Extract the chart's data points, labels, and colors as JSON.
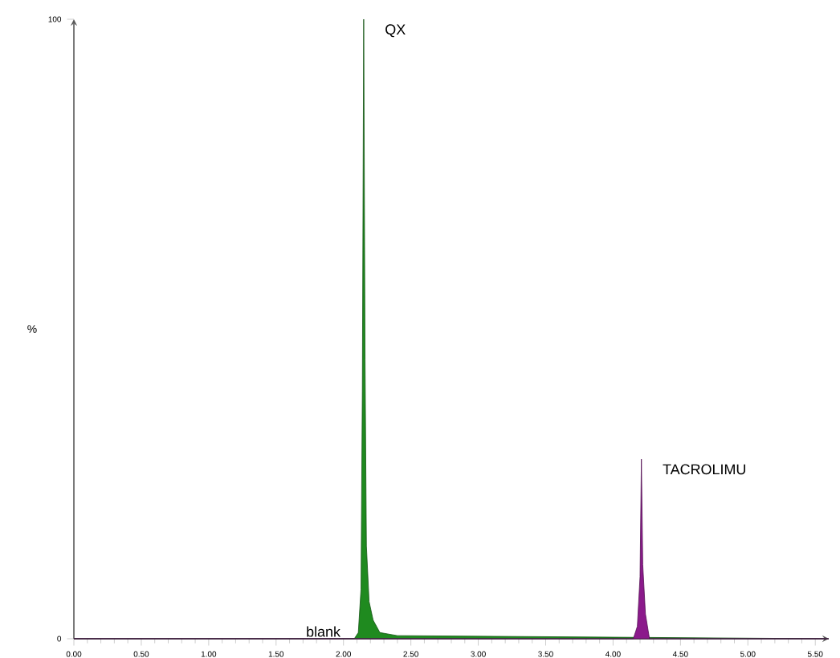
{
  "chart_data": {
    "type": "area",
    "ylabel": "%",
    "xlim": [
      0,
      5.6
    ],
    "ylim": [
      0,
      100
    ],
    "xticks": [
      {
        "value": 0,
        "label": "0.00"
      },
      {
        "value": 0.5,
        "label": "0.50"
      },
      {
        "value": 1,
        "label": "1.00"
      },
      {
        "value": 1.5,
        "label": "1.50"
      },
      {
        "value": 2,
        "label": "2.00"
      },
      {
        "value": 2.5,
        "label": "2.50"
      },
      {
        "value": 3,
        "label": "3.00"
      },
      {
        "value": 3.5,
        "label": "3.50"
      },
      {
        "value": 4,
        "label": "4.00"
      },
      {
        "value": 4.5,
        "label": "4.50"
      },
      {
        "value": 5,
        "label": "5.00"
      },
      {
        "value": 5.5,
        "label": "5.50"
      }
    ],
    "yticks": [
      0,
      100
    ],
    "annotations": [
      {
        "text": "blank",
        "x": 1.85,
        "y": 0
      }
    ],
    "series": [
      {
        "name": "QX",
        "color": "#1f8a1f",
        "x": [
          0,
          2.08,
          2.11,
          2.13,
          2.14,
          2.15,
          2.16,
          2.17,
          2.19,
          2.22,
          2.27,
          2.4,
          5.6
        ],
        "values": [
          0,
          0,
          1,
          8,
          40,
          100,
          45,
          15,
          6,
          3,
          1,
          0.5,
          0
        ]
      },
      {
        "name": "TACROLIMU",
        "color": "#8b1a8b",
        "x": [
          0,
          4.15,
          4.18,
          4.2,
          4.21,
          4.22,
          4.24,
          4.27,
          5.6
        ],
        "values": [
          0,
          0,
          2,
          10,
          29,
          12,
          4,
          0,
          0
        ]
      }
    ]
  }
}
